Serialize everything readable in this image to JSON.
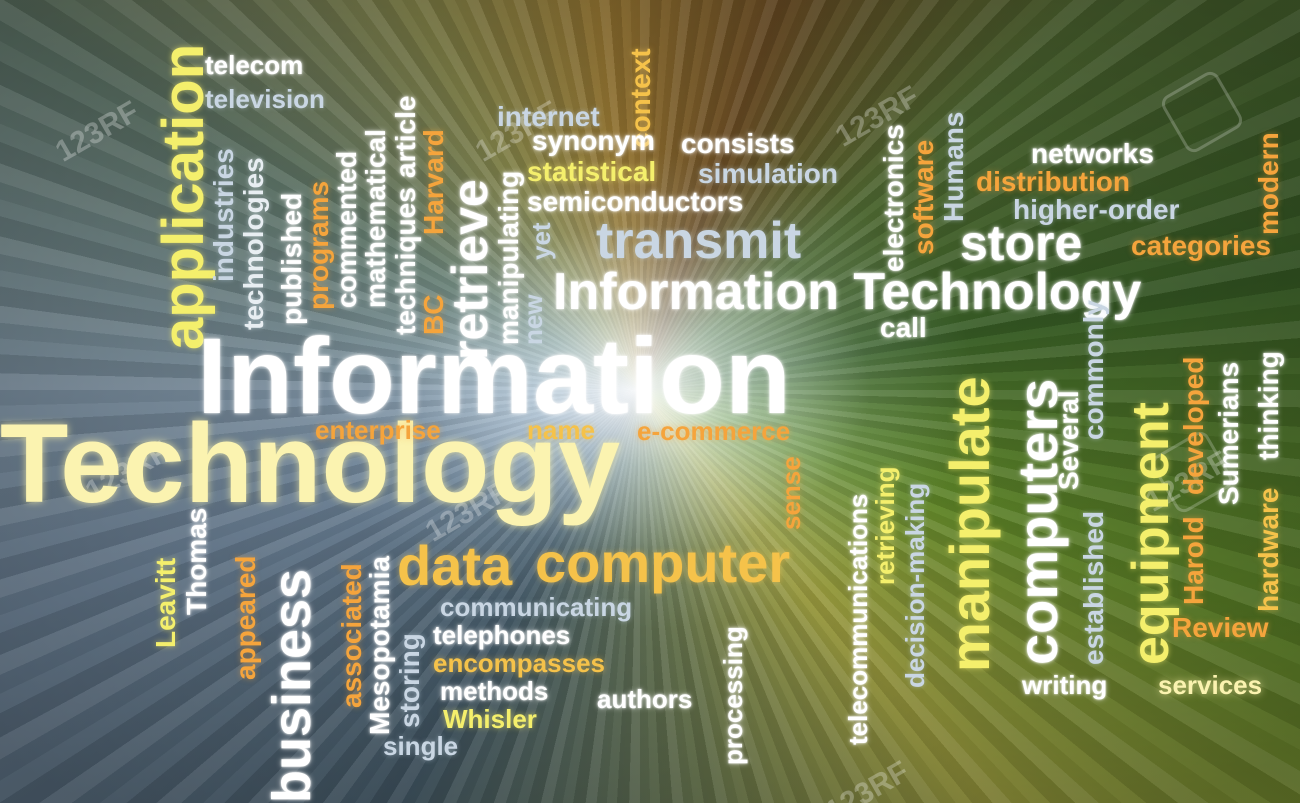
{
  "words": {
    "information_big": "Information",
    "technology_big": "Technology",
    "information_technology": "Information Technology",
    "application": "application",
    "telecom": "telecom",
    "television": "television",
    "industries": "industries",
    "technologies": "technologies",
    "published": "published",
    "programs": "programs",
    "commented": "commented",
    "mathematical": "mathematical",
    "techniques": "techniques",
    "article": "article",
    "harvard": "Harvard",
    "bc": "BC",
    "retrieve": "retrieve",
    "internet": "internet",
    "manipulating": "manipulating",
    "new": "new",
    "yet": "yet",
    "context": "context",
    "synonym": "synonym",
    "consists": "consists",
    "statistical": "statistical",
    "simulation": "simulation",
    "semiconductors": "semiconductors",
    "transmit": "transmit",
    "electronics": "electronics",
    "software": "software",
    "humans": "Humans",
    "networks": "networks",
    "distribution": "distribution",
    "higher_order": "higher-order",
    "modern": "modern",
    "store": "store",
    "categories": "categories",
    "call": "call",
    "manipulate": "manipulate",
    "computers": "computers",
    "several": "Several",
    "commonly": "commonly",
    "established": "established",
    "equipment": "equipment",
    "harold": "Harold",
    "developed": "developed",
    "sumerians": "Sumerians",
    "thinking": "thinking",
    "hardware": "hardware",
    "review": "Review",
    "enterprise": "enterprise",
    "name": "name",
    "e_commerce": "e-commerce",
    "sense": "sense",
    "telecommunications": "telecommunications",
    "retrieving": "retrieving",
    "decision_making": "decision-making",
    "data": "data",
    "computer": "computer",
    "communicating": "communicating",
    "telephones": "telephones",
    "encompasses": "encompasses",
    "methods": "methods",
    "whisler": "Whisler",
    "authors": "authors",
    "single": "single",
    "processing": "processing",
    "leavitt": "Leavitt",
    "thomas": "Thomas",
    "appeared": "appeared",
    "business": "business",
    "associated": "associated",
    "mesopotamia": "Mesopotamia",
    "storing": "storing",
    "writing": "writing",
    "services": "services"
  },
  "watermark": {
    "text": "123RF"
  },
  "colors": {
    "white": "#ffffff",
    "yellow": "#f4ef6c",
    "gold": "#f5c24a",
    "orange": "#f5a43c",
    "pale_blue": "#c9d6e3"
  }
}
